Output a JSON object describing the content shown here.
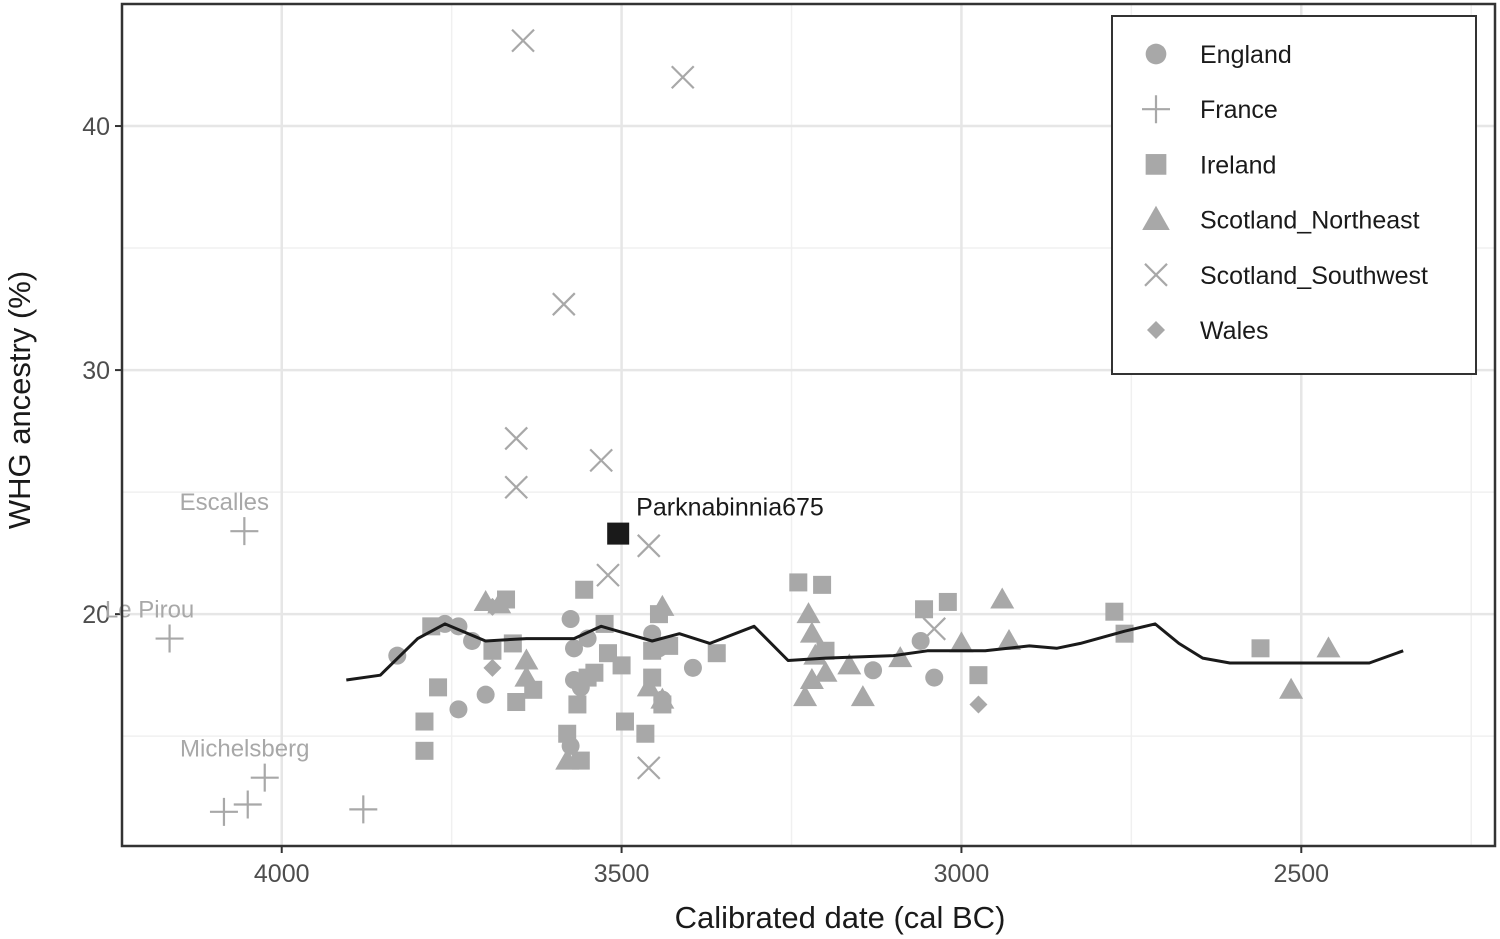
{
  "chart_data": {
    "type": "scatter",
    "xlabel": "Calibrated date (cal BC)",
    "ylabel": "WHG ancestry (%)",
    "x_reversed": true,
    "xlim": [
      4235,
      2215
    ],
    "ylim": [
      10.5,
      45
    ],
    "xticks": [
      4000,
      3500,
      3000,
      2500
    ],
    "yticks": [
      20,
      30,
      40
    ],
    "grid": true,
    "legend_position": "top-right",
    "colors": {
      "points": "#a8a8a8",
      "highlight": "#1a1a1a",
      "line": "#1a1a1a"
    },
    "series": [
      {
        "name": "England",
        "marker": "circle",
        "points": [
          [
            3830,
            18.3
          ],
          [
            3760,
            19.6
          ],
          [
            3740,
            19.5
          ],
          [
            3720,
            18.9
          ],
          [
            3700,
            16.7
          ],
          [
            3740,
            16.1
          ],
          [
            3575,
            19.8
          ],
          [
            3570,
            18.6
          ],
          [
            3570,
            17.3
          ],
          [
            3560,
            17.0
          ],
          [
            3575,
            14.6
          ],
          [
            3550,
            19.0
          ],
          [
            3445,
            18.6
          ],
          [
            3440,
            16.5
          ],
          [
            3455,
            19.2
          ],
          [
            3395,
            17.8
          ],
          [
            3130,
            17.7
          ],
          [
            3060,
            18.9
          ],
          [
            3040,
            17.4
          ]
        ]
      },
      {
        "name": "France",
        "marker": "plus",
        "points": [
          [
            3880,
            12.0
          ]
        ]
      },
      {
        "name": "Ireland",
        "marker": "square",
        "points": [
          [
            3780,
            19.5
          ],
          [
            3770,
            17.0
          ],
          [
            3790,
            15.6
          ],
          [
            3790,
            14.4
          ],
          [
            3690,
            18.5
          ],
          [
            3670,
            20.6
          ],
          [
            3660,
            18.8
          ],
          [
            3655,
            16.4
          ],
          [
            3630,
            16.9
          ],
          [
            3580,
            15.1
          ],
          [
            3560,
            14.0
          ],
          [
            3565,
            16.3
          ],
          [
            3555,
            21.0
          ],
          [
            3550,
            17.4
          ],
          [
            3540,
            17.6
          ],
          [
            3525,
            19.6
          ],
          [
            3520,
            18.4
          ],
          [
            3495,
            15.6
          ],
          [
            3500,
            17.9
          ],
          [
            3465,
            15.1
          ],
          [
            3455,
            18.5
          ],
          [
            3455,
            17.4
          ],
          [
            3445,
            20.0
          ],
          [
            3440,
            16.3
          ],
          [
            3430,
            18.7
          ],
          [
            3360,
            18.4
          ],
          [
            3240,
            21.3
          ],
          [
            3205,
            21.2
          ],
          [
            3200,
            18.5
          ],
          [
            3055,
            20.2
          ],
          [
            3020,
            20.5
          ],
          [
            2975,
            17.5
          ],
          [
            2775,
            20.1
          ],
          [
            2760,
            19.2
          ],
          [
            2560,
            18.6
          ]
        ]
      },
      {
        "name": "Scotland_Northeast",
        "marker": "triangle",
        "points": [
          [
            3700,
            20.5
          ],
          [
            3680,
            20.4
          ],
          [
            3640,
            18.1
          ],
          [
            3640,
            17.4
          ],
          [
            3580,
            14.0
          ],
          [
            3460,
            17.0
          ],
          [
            3440,
            20.3
          ],
          [
            3440,
            16.5
          ],
          [
            3225,
            20.0
          ],
          [
            3220,
            19.2
          ],
          [
            3230,
            16.6
          ],
          [
            3215,
            18.3
          ],
          [
            3220,
            17.3
          ],
          [
            3200,
            17.6
          ],
          [
            3165,
            17.9
          ],
          [
            3145,
            16.6
          ],
          [
            3090,
            18.2
          ],
          [
            3000,
            18.8
          ],
          [
            2940,
            20.6
          ],
          [
            2930,
            18.9
          ],
          [
            2515,
            16.9
          ],
          [
            2460,
            18.6
          ]
        ]
      },
      {
        "name": "Scotland_Southwest",
        "marker": "cross",
        "points": [
          [
            3645,
            43.5
          ],
          [
            3410,
            42.0
          ],
          [
            3585,
            32.7
          ],
          [
            3655,
            27.2
          ],
          [
            3655,
            25.2
          ],
          [
            3530,
            26.3
          ],
          [
            3460,
            22.8
          ],
          [
            3520,
            21.6
          ],
          [
            3460,
            13.7
          ],
          [
            3040,
            19.4
          ]
        ]
      },
      {
        "name": "Wales",
        "marker": "diamond",
        "points": [
          [
            3690,
            20.3
          ],
          [
            3690,
            17.8
          ],
          [
            2975,
            16.3
          ]
        ]
      }
    ],
    "highlight": {
      "label": "Parknabinnia675",
      "x": 3505,
      "y": 23.3
    },
    "annotations": [
      {
        "label": "Escalles",
        "x": 4055,
        "y": 23.4
      },
      {
        "label": "Le Pirou",
        "x": 4165,
        "y": 19.0
      },
      {
        "label": "Michelsberg",
        "x": 4025,
        "y": 13.3
      }
    ],
    "extra_france_points": [
      [
        4055,
        23.4
      ],
      [
        4165,
        19.0
      ],
      [
        4025,
        13.3
      ],
      [
        4050,
        12.2
      ],
      [
        4085,
        11.9
      ]
    ],
    "trend_line": [
      [
        3905,
        17.3
      ],
      [
        3855,
        17.5
      ],
      [
        3800,
        19.0
      ],
      [
        3760,
        19.6
      ],
      [
        3700,
        18.9
      ],
      [
        3640,
        19.0
      ],
      [
        3570,
        19.0
      ],
      [
        3530,
        19.5
      ],
      [
        3455,
        18.9
      ],
      [
        3415,
        19.2
      ],
      [
        3370,
        18.8
      ],
      [
        3305,
        19.5
      ],
      [
        3255,
        18.1
      ],
      [
        3200,
        18.2
      ],
      [
        3100,
        18.3
      ],
      [
        3050,
        18.5
      ],
      [
        3005,
        18.5
      ],
      [
        2965,
        18.5
      ],
      [
        2900,
        18.7
      ],
      [
        2860,
        18.6
      ],
      [
        2825,
        18.8
      ],
      [
        2760,
        19.3
      ],
      [
        2715,
        19.6
      ],
      [
        2680,
        18.8
      ],
      [
        2645,
        18.2
      ],
      [
        2605,
        18.0
      ],
      [
        2575,
        18.0
      ],
      [
        2460,
        18.0
      ],
      [
        2400,
        18.0
      ],
      [
        2350,
        18.5
      ]
    ]
  }
}
